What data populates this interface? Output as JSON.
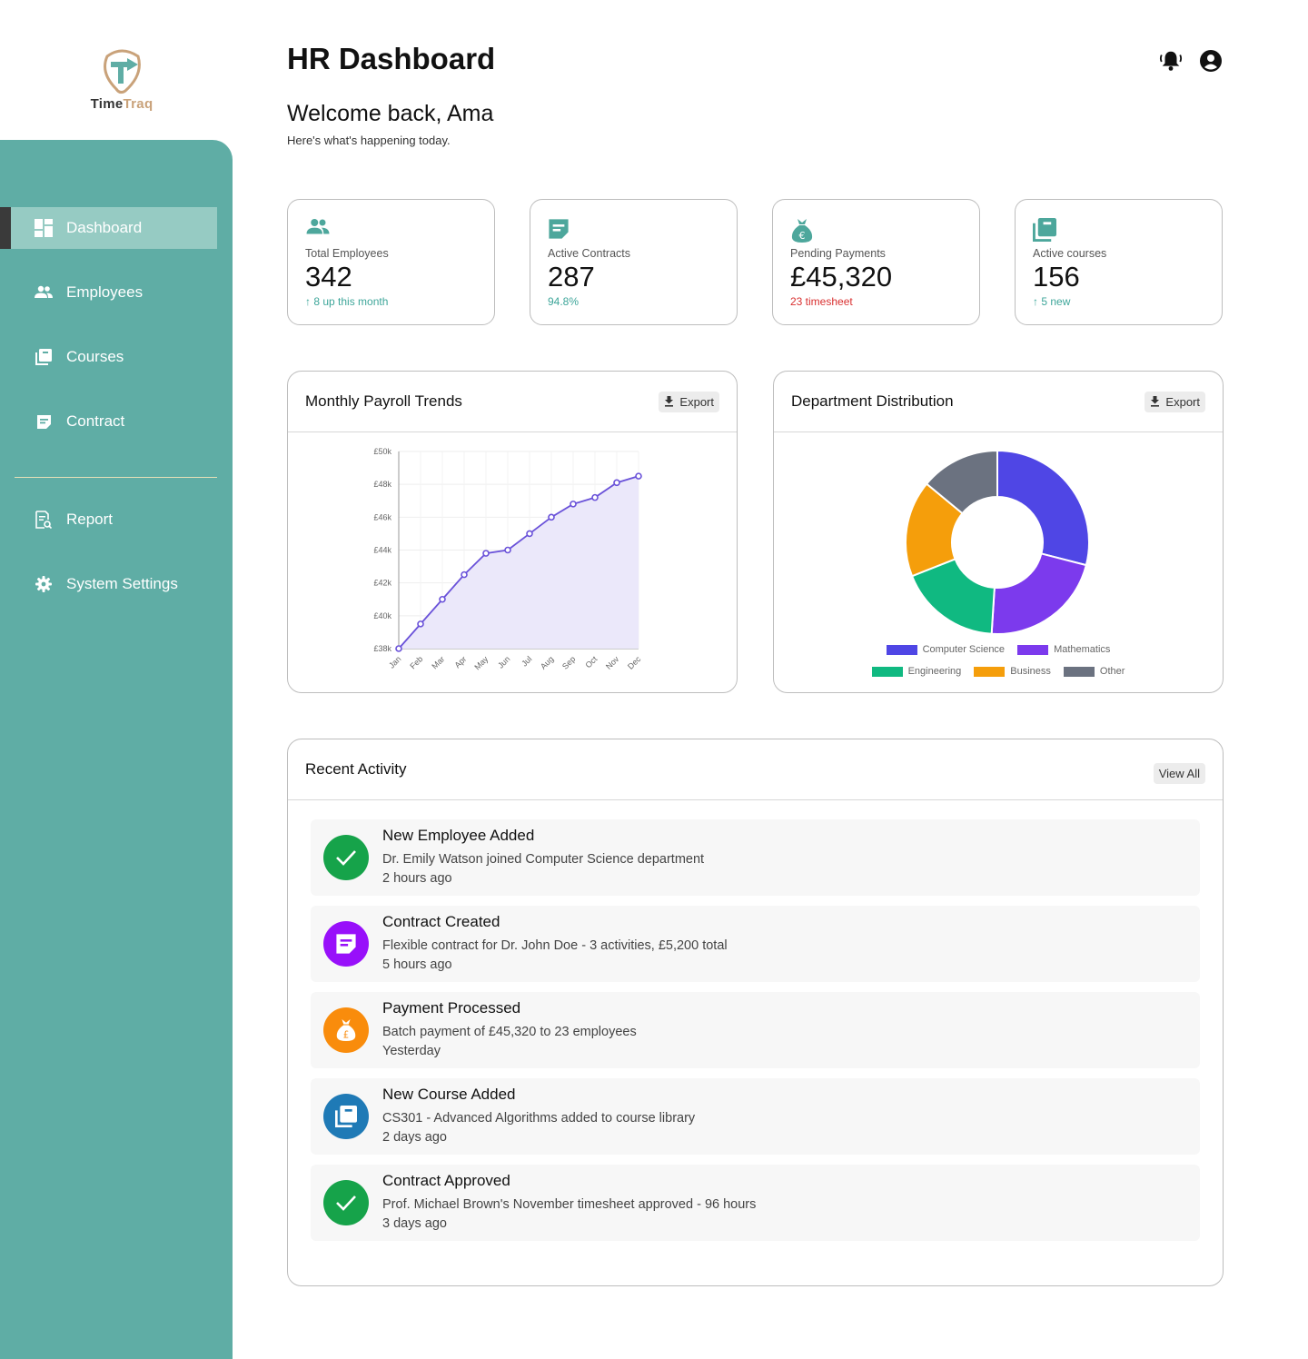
{
  "brand": {
    "name_a": "Time",
    "name_b": "Traq",
    "logo_color": "#c9a27a",
    "accent": "#5fada5"
  },
  "sidebar": {
    "items": [
      {
        "label": "Dashboard",
        "icon": "dashboard-icon",
        "active": true
      },
      {
        "label": "Employees",
        "icon": "people-icon"
      },
      {
        "label": "Courses",
        "icon": "library-icon"
      },
      {
        "label": "Contract",
        "icon": "note-icon"
      },
      {
        "label": "Report",
        "icon": "report-icon"
      },
      {
        "label": "System Settings",
        "icon": "gear-icon"
      }
    ]
  },
  "header": {
    "title": "HR Dashboard",
    "welcome": "Welcome back, Ama",
    "subtitle": "Here's what's happening today.",
    "icons": [
      "bell-icon",
      "account-icon"
    ]
  },
  "stats": [
    {
      "label": "Total Employees",
      "value": "342",
      "note": "8 up this month",
      "note_arrow": "↑",
      "icon": "people-icon"
    },
    {
      "label": "Active Contracts",
      "value": "287",
      "note": "94.8%",
      "icon": "note-icon"
    },
    {
      "label": "Pending Payments",
      "value": "£45,320",
      "note": "23 timesheet",
      "icon": "money-bag-icon"
    },
    {
      "label": "Active courses",
      "value": "156",
      "note": "5 new",
      "note_arrow": "↑",
      "icon": "library-icon"
    }
  ],
  "payroll": {
    "title": "Monthly Payroll Trends",
    "export": "Export"
  },
  "department": {
    "title": "Department Distribution",
    "export": "Export"
  },
  "chart_data": [
    {
      "type": "area",
      "title": "Monthly Payroll Trends",
      "categories": [
        "Jan",
        "Feb",
        "Mar",
        "Apr",
        "May",
        "Jun",
        "Jul",
        "Aug",
        "Sep",
        "Oct",
        "Nov",
        "Dec"
      ],
      "values": [
        38000,
        39500,
        41000,
        42500,
        43800,
        44000,
        45000,
        46000,
        46800,
        47200,
        48100,
        48500
      ],
      "y_tick_labels": [
        "£38k",
        "£40k",
        "£42k",
        "£44k",
        "£46k",
        "£48k",
        "£50k"
      ],
      "y_ticks": [
        38000,
        40000,
        42000,
        44000,
        46000,
        48000,
        50000
      ],
      "ylim": [
        38000,
        50000
      ],
      "color": "#6a52d9",
      "fill": "#ebe8fa",
      "grid": true
    },
    {
      "type": "pie",
      "title": "Department Distribution",
      "donut": true,
      "labels": [
        "Computer Science",
        "Mathematics",
        "Engineering",
        "Business",
        "Other"
      ],
      "values": [
        29,
        22,
        18,
        17,
        14
      ],
      "colors": [
        "#4f46e5",
        "#7c3aed",
        "#10b981",
        "#f59e0b",
        "#6b7280"
      ],
      "legend": "bottom"
    }
  ],
  "activity": {
    "title": "Recent Activity",
    "view_all": "View All",
    "items": [
      {
        "title": "New Employee Added",
        "desc": "Dr. Emily Watson joined Computer Science department",
        "time": "2 hours ago",
        "icon": "check-icon",
        "color": "#16a34a"
      },
      {
        "title": "Contract Created",
        "desc": "Flexible contract for Dr. John Doe - 3 activities, £5,200 total",
        "time": "5 hours ago",
        "icon": "note-icon",
        "color": "#9810fa"
      },
      {
        "title": "Payment Processed",
        "desc": "Batch payment of £45,320 to 23 employees",
        "time": "Yesterday",
        "icon": "money-bag-icon",
        "color": "#f98c0c"
      },
      {
        "title": "New Course Added",
        "desc": "CS301 - Advanced Algorithms added to course library",
        "time": "2 days ago",
        "icon": "library-icon",
        "color": "#1f7ab6"
      },
      {
        "title": "Contract Approved",
        "desc": "Prof. Michael Brown's November timesheet approved - 96 hours",
        "time": "3 days ago",
        "icon": "check-icon",
        "color": "#16a34a"
      }
    ]
  }
}
